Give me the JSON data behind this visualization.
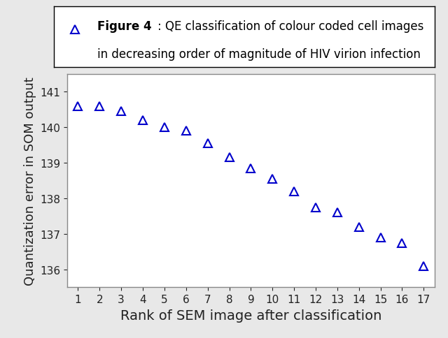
{
  "x": [
    1,
    2,
    3,
    4,
    5,
    6,
    7,
    8,
    9,
    10,
    11,
    12,
    13,
    14,
    15,
    16,
    17
  ],
  "y": [
    140.6,
    140.6,
    140.45,
    140.2,
    140.0,
    139.9,
    139.55,
    139.15,
    138.85,
    138.55,
    138.2,
    137.75,
    137.6,
    137.2,
    136.9,
    136.75,
    136.1
  ],
  "marker": "^",
  "marker_color": "#0000cc",
  "marker_size": 8,
  "title_bold": "Figure 4",
  "title_rest": ": QE classification of colour coded cell images\nin decreasing order of magnitude of HIV virion infection",
  "xlabel": "Rank of SEM image after classification",
  "ylabel": "Quantization error in SOM output",
  "xlim": [
    0.5,
    17.5
  ],
  "ylim": [
    135.5,
    141.5
  ],
  "yticks": [
    136,
    137,
    138,
    139,
    140,
    141
  ],
  "xticks": [
    1,
    2,
    3,
    4,
    5,
    6,
    7,
    8,
    9,
    10,
    11,
    12,
    13,
    14,
    15,
    16,
    17
  ],
  "background_color": "#e8e8e8",
  "plot_bg_color": "#ffffff",
  "axis_color": "#888888",
  "font_color": "#222222",
  "xlabel_fontsize": 14,
  "ylabel_fontsize": 13,
  "tick_fontsize": 11,
  "legend_fontsize": 12,
  "legend_bold_fontsize": 12
}
